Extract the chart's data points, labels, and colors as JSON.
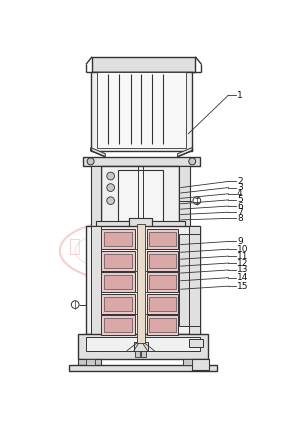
{
  "bg": "#ffffff",
  "lc": "#333333",
  "lc_thin": "#555555",
  "fill_light": "#f0f0f0",
  "fill_med": "#e0e0e0",
  "fill_dark": "#c8c8c8",
  "fill_pink": "#e8c8c8",
  "wm_color": "#f0b0b0",
  "label_color": "#111111",
  "fig_w": 3.0,
  "fig_h": 4.21,
  "dpi": 100,
  "labels": [
    [
      "1",
      195,
      108,
      255,
      58
    ],
    [
      "2",
      185,
      178,
      255,
      170
    ],
    [
      "3",
      185,
      185,
      255,
      178
    ],
    [
      "4",
      185,
      192,
      255,
      186
    ],
    [
      "5",
      185,
      199,
      255,
      194
    ],
    [
      "6",
      185,
      206,
      255,
      202
    ],
    [
      "7",
      185,
      213,
      255,
      210
    ],
    [
      "8",
      185,
      220,
      255,
      218
    ],
    [
      "9",
      185,
      252,
      255,
      248
    ],
    [
      "10",
      185,
      262,
      255,
      258
    ],
    [
      "11",
      185,
      271,
      255,
      267
    ],
    [
      "12",
      185,
      280,
      255,
      276
    ],
    [
      "13",
      185,
      289,
      255,
      285
    ],
    [
      "14",
      185,
      299,
      255,
      295
    ],
    [
      "15",
      185,
      310,
      255,
      306
    ]
  ]
}
